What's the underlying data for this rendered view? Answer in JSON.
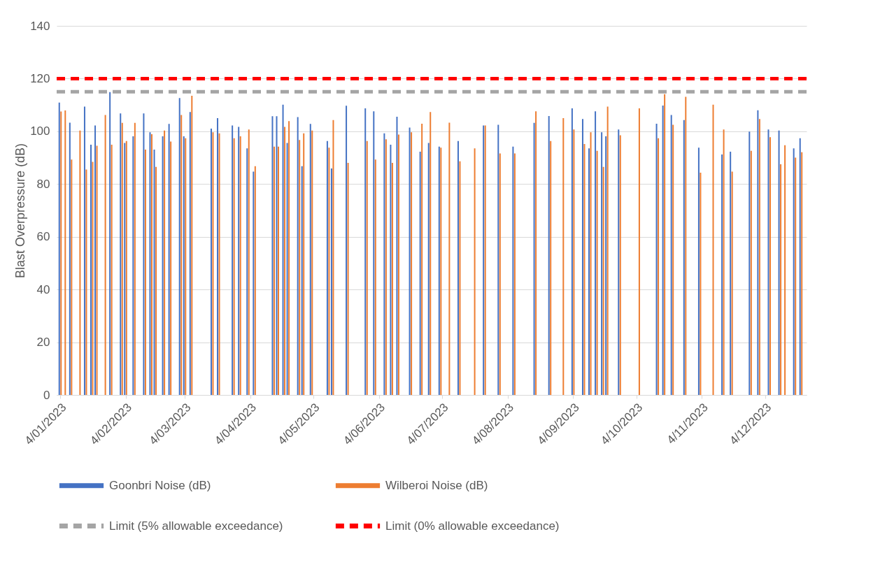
{
  "chart_data": {
    "type": "bar",
    "ylabel": "Blast Overpressure (dB)",
    "ylim": [
      0,
      140
    ],
    "yticks": [
      0,
      20,
      40,
      60,
      80,
      100,
      120,
      140
    ],
    "grid": "y",
    "legend": "bottom",
    "xlim": [
      "2023-01-04",
      "2023-12-22"
    ],
    "xticks": [
      {
        "value": "2023-01-04",
        "label": "4/01/2023"
      },
      {
        "value": "2023-02-04",
        "label": "4/02/2023"
      },
      {
        "value": "2023-03-04",
        "label": "4/03/2023"
      },
      {
        "value": "2023-04-04",
        "label": "4/04/2023"
      },
      {
        "value": "2023-05-04",
        "label": "4/05/2023"
      },
      {
        "value": "2023-06-04",
        "label": "4/06/2023"
      },
      {
        "value": "2023-07-04",
        "label": "4/07/2023"
      },
      {
        "value": "2023-08-04",
        "label": "4/08/2023"
      },
      {
        "value": "2023-09-04",
        "label": "4/09/2023"
      },
      {
        "value": "2023-10-04",
        "label": "4/10/2023"
      },
      {
        "value": "2023-11-04",
        "label": "4/11/2023"
      },
      {
        "value": "2023-12-04",
        "label": "4/12/2023"
      }
    ],
    "x": [
      "2023-01-04",
      "2023-01-06",
      "2023-01-09",
      "2023-01-13",
      "2023-01-16",
      "2023-01-19",
      "2023-01-21",
      "2023-01-25",
      "2023-01-28",
      "2023-02-02",
      "2023-02-04",
      "2023-02-08",
      "2023-02-13",
      "2023-02-16",
      "2023-02-18",
      "2023-02-22",
      "2023-02-25",
      "2023-03-02",
      "2023-03-04",
      "2023-03-07",
      "2023-03-17",
      "2023-03-20",
      "2023-03-27",
      "2023-03-30",
      "2023-04-03",
      "2023-04-06",
      "2023-04-15",
      "2023-04-17",
      "2023-04-20",
      "2023-04-22",
      "2023-04-27",
      "2023-04-29",
      "2023-05-03",
      "2023-05-11",
      "2023-05-13",
      "2023-05-20",
      "2023-05-29",
      "2023-06-02",
      "2023-06-07",
      "2023-06-10",
      "2023-06-13",
      "2023-06-19",
      "2023-06-24",
      "2023-06-28",
      "2023-07-03",
      "2023-07-07",
      "2023-07-12",
      "2023-07-19",
      "2023-07-24",
      "2023-07-31",
      "2023-08-07",
      "2023-08-17",
      "2023-08-24",
      "2023-08-30",
      "2023-09-04",
      "2023-09-09",
      "2023-09-12",
      "2023-09-15",
      "2023-09-18",
      "2023-09-20",
      "2023-09-26",
      "2023-10-05",
      "2023-10-14",
      "2023-10-17",
      "2023-10-21",
      "2023-10-27",
      "2023-11-03",
      "2023-11-09",
      "2023-11-14",
      "2023-11-18",
      "2023-11-27",
      "2023-12-01",
      "2023-12-06",
      "2023-12-11",
      "2023-12-13",
      "2023-12-18",
      "2023-12-21"
    ],
    "series": [
      {
        "name": "Goonbri Noise (dB)",
        "color": "#4472c4",
        "values": [
          110.9,
          null,
          103.3,
          null,
          109.4,
          94.9,
          102.2,
          null,
          114.9,
          106.8,
          95.6,
          98.1,
          106.8,
          99.6,
          93.1,
          98.1,
          102.8,
          112.6,
          98.1,
          107.3,
          101.0,
          105.0,
          102.2,
          101.7,
          93.5,
          84.7,
          105.7,
          105.7,
          110.1,
          95.6,
          105.4,
          86.8,
          102.8,
          96.3,
          85.9,
          109.7,
          108.7,
          107.6,
          99.2,
          94.9,
          105.5,
          101.4,
          92.3,
          95.6,
          94.2,
          null,
          96.3,
          null,
          102.2,
          102.5,
          94.2,
          103.2,
          105.8,
          null,
          108.7,
          104.7,
          93.5,
          107.6,
          99.6,
          98.1,
          100.7,
          null,
          102.9,
          109.8,
          106.2,
          104.3,
          93.8,
          null,
          91.2,
          92.3,
          99.9,
          108.0,
          100.7,
          100.3,
          null,
          93.5,
          97.4
        ]
      },
      {
        "name": "Wilberoi Noise (dB)",
        "color": "#ed7d31",
        "values": [
          107.5,
          107.9,
          89.3,
          100.3,
          85.5,
          88.4,
          94.5,
          106.2,
          94.9,
          103.2,
          96.3,
          103.2,
          93.1,
          98.9,
          86.5,
          100.3,
          96.1,
          106.2,
          97.4,
          113.5,
          99.6,
          99.2,
          97.4,
          98.1,
          100.7,
          86.8,
          94.2,
          94.2,
          101.7,
          103.9,
          96.7,
          99.2,
          100.3,
          93.8,
          104.3,
          88.0,
          96.3,
          89.3,
          97.0,
          88.0,
          98.8,
          99.6,
          102.9,
          107.3,
          93.8,
          103.3,
          88.6,
          93.5,
          102.2,
          91.6,
          91.6,
          107.6,
          96.3,
          105.0,
          100.7,
          95.2,
          99.6,
          92.6,
          86.5,
          109.4,
          98.5,
          108.7,
          97.4,
          114.1,
          102.5,
          113.1,
          84.3,
          110.1,
          100.7,
          84.7,
          92.6,
          104.7,
          97.8,
          87.5,
          94.7,
          90.0,
          92.1
        ]
      }
    ],
    "ref_lines": [
      {
        "axis": "y",
        "value": 115,
        "label": "Limit (5% allowable exceedance)",
        "color": "#a5a5a5",
        "line_style": "dashed"
      },
      {
        "axis": "y",
        "value": 120,
        "label": "Limit (0% allowable exceedance)",
        "color": "#ff0000",
        "line_style": "dashed"
      }
    ]
  }
}
